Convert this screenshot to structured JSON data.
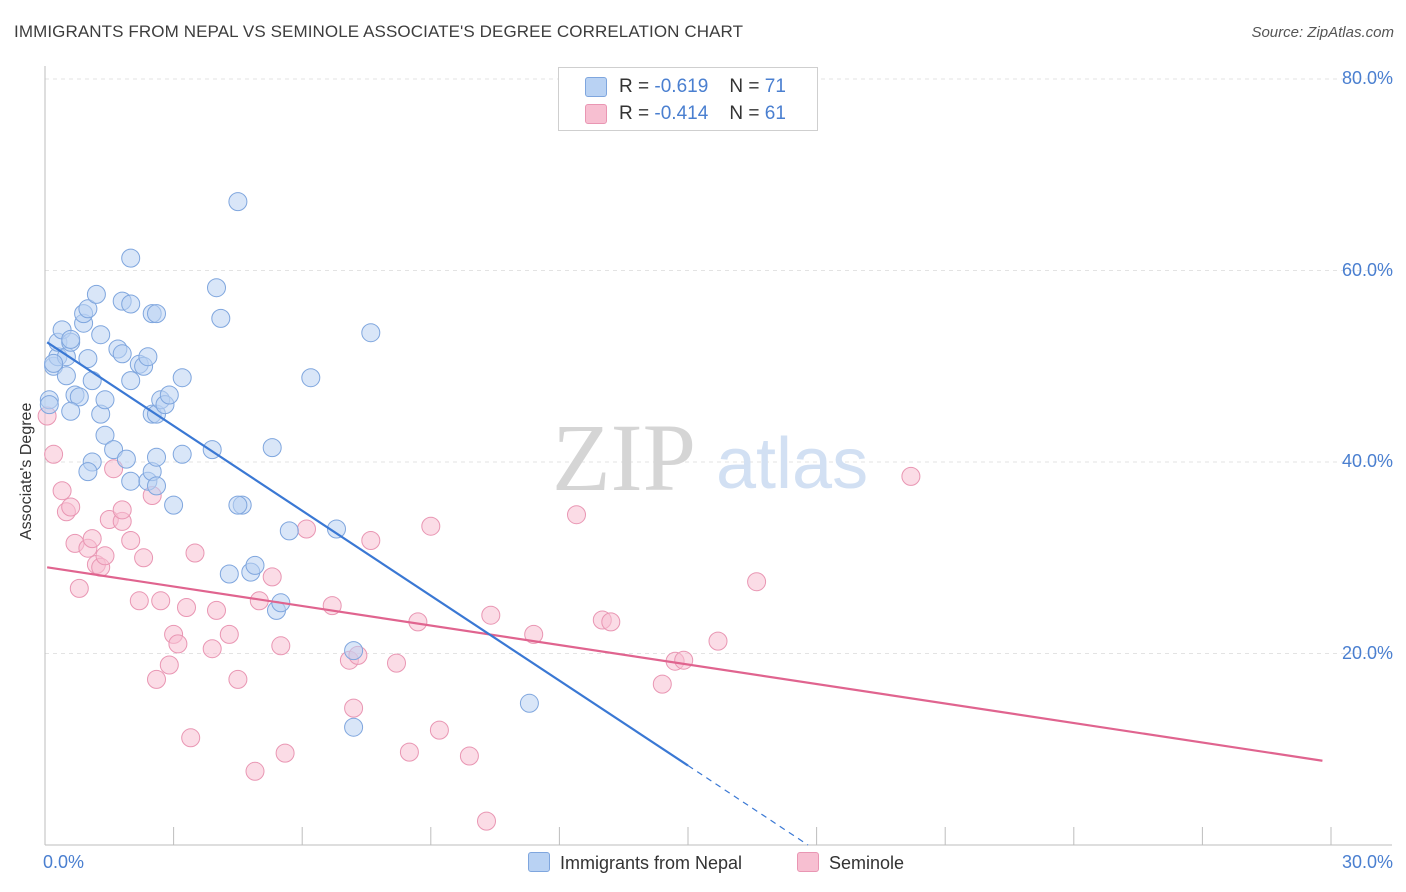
{
  "header": {
    "title": "IMMIGRANTS FROM NEPAL VS SEMINOLE ASSOCIATE'S DEGREE CORRELATION CHART",
    "source": "Source: ZipAtlas.com"
  },
  "watermark": {
    "zip": "ZIP",
    "atlas": "atlas"
  },
  "legend": {
    "rows": [
      {
        "r_label": "R =",
        "r_value": "-0.619",
        "n_label": "N =",
        "n_value": "71"
      },
      {
        "r_label": "R =",
        "r_value": "-0.414",
        "n_label": "N =",
        "n_value": "61"
      }
    ]
  },
  "colors": {
    "nepal": "#4a7fd0",
    "nepal_fill": "#b9d2f3",
    "seminole": "#e0648f",
    "seminole_fill": "#f7bfd1",
    "axis_text": "#4a7fd0"
  },
  "chart_data": {
    "type": "scatter",
    "title": "IMMIGRANTS FROM NEPAL VS SEMINOLE ASSOCIATE'S DEGREE CORRELATION CHART",
    "xlabel": "",
    "ylabel": "Associate's Degree",
    "xlim": [
      0,
      30
    ],
    "ylim": [
      0,
      80
    ],
    "x_ticks": [
      "0.0%",
      "30.0%"
    ],
    "y_ticks": [
      "20.0%",
      "40.0%",
      "60.0%",
      "80.0%"
    ],
    "grid": true,
    "legend_position": "top-center",
    "series": [
      {
        "name": "Immigrants from Nepal",
        "r": -0.619,
        "n": 71,
        "trend": {
          "x": [
            0.05,
            15.0
          ],
          "y": [
            52.5,
            8.3
          ],
          "dashed_to": [
            17.8,
            0.0
          ]
        },
        "points": [
          [
            0.1,
            46.5
          ],
          [
            0.2,
            50.0
          ],
          [
            0.3,
            51.0
          ],
          [
            0.3,
            52.5
          ],
          [
            0.4,
            53.8
          ],
          [
            0.5,
            51.0
          ],
          [
            0.5,
            49.0
          ],
          [
            0.6,
            52.5
          ],
          [
            0.6,
            52.8
          ],
          [
            0.7,
            47.0
          ],
          [
            0.8,
            46.8
          ],
          [
            0.9,
            54.5
          ],
          [
            0.9,
            55.5
          ],
          [
            1.0,
            56.0
          ],
          [
            1.0,
            50.8
          ],
          [
            1.1,
            48.5
          ],
          [
            1.1,
            40.0
          ],
          [
            1.0,
            39.0
          ],
          [
            1.2,
            57.5
          ],
          [
            1.3,
            53.3
          ],
          [
            1.3,
            45.0
          ],
          [
            1.4,
            46.5
          ],
          [
            1.4,
            42.8
          ],
          [
            1.6,
            41.3
          ],
          [
            1.7,
            51.8
          ],
          [
            1.8,
            51.3
          ],
          [
            1.8,
            56.8
          ],
          [
            1.9,
            40.3
          ],
          [
            2.0,
            38.0
          ],
          [
            2.0,
            56.5
          ],
          [
            2.0,
            48.5
          ],
          [
            2.2,
            50.2
          ],
          [
            2.3,
            50.0
          ],
          [
            2.4,
            51.0
          ],
          [
            2.0,
            61.3
          ],
          [
            2.4,
            38.0
          ],
          [
            2.5,
            45.0
          ],
          [
            2.5,
            39.0
          ],
          [
            2.5,
            55.5
          ],
          [
            2.6,
            45.0
          ],
          [
            2.6,
            55.5
          ],
          [
            2.6,
            40.5
          ],
          [
            2.6,
            37.5
          ],
          [
            2.7,
            46.5
          ],
          [
            2.8,
            46.0
          ],
          [
            2.9,
            47.0
          ],
          [
            3.0,
            35.5
          ],
          [
            3.2,
            48.8
          ],
          [
            3.2,
            40.8
          ],
          [
            3.9,
            41.3
          ],
          [
            4.0,
            58.2
          ],
          [
            4.1,
            55.0
          ],
          [
            4.3,
            28.3
          ],
          [
            4.5,
            67.2
          ],
          [
            4.6,
            35.5
          ],
          [
            4.5,
            35.5
          ],
          [
            4.8,
            28.5
          ],
          [
            4.9,
            29.2
          ],
          [
            5.3,
            41.5
          ],
          [
            5.4,
            24.5
          ],
          [
            5.5,
            25.3
          ],
          [
            5.7,
            32.8
          ],
          [
            6.2,
            48.8
          ],
          [
            6.8,
            33.0
          ],
          [
            7.2,
            20.3
          ],
          [
            7.2,
            12.3
          ],
          [
            7.6,
            53.5
          ],
          [
            11.3,
            14.8
          ],
          [
            0.1,
            46.0
          ],
          [
            0.2,
            50.3
          ],
          [
            0.6,
            45.3
          ]
        ]
      },
      {
        "name": "Seminole",
        "r": -0.414,
        "n": 61,
        "trend": {
          "x": [
            0.05,
            29.8
          ],
          "y": [
            29.0,
            8.8
          ]
        },
        "points": [
          [
            0.05,
            44.8
          ],
          [
            0.2,
            40.8
          ],
          [
            0.4,
            37.0
          ],
          [
            0.5,
            34.8
          ],
          [
            0.6,
            35.3
          ],
          [
            0.7,
            31.5
          ],
          [
            0.8,
            26.8
          ],
          [
            1.0,
            31.0
          ],
          [
            1.1,
            32.0
          ],
          [
            1.2,
            29.3
          ],
          [
            1.3,
            29.0
          ],
          [
            1.4,
            30.2
          ],
          [
            1.5,
            34.0
          ],
          [
            1.6,
            39.3
          ],
          [
            1.8,
            33.8
          ],
          [
            1.8,
            35.0
          ],
          [
            2.0,
            31.8
          ],
          [
            2.2,
            25.5
          ],
          [
            2.3,
            30.0
          ],
          [
            2.5,
            36.5
          ],
          [
            2.6,
            17.3
          ],
          [
            2.7,
            25.5
          ],
          [
            2.9,
            18.8
          ],
          [
            3.0,
            22.0
          ],
          [
            3.1,
            21.0
          ],
          [
            3.3,
            24.8
          ],
          [
            3.4,
            11.2
          ],
          [
            3.5,
            30.5
          ],
          [
            3.9,
            20.5
          ],
          [
            4.0,
            24.5
          ],
          [
            4.3,
            22.0
          ],
          [
            4.5,
            17.3
          ],
          [
            4.9,
            7.7
          ],
          [
            5.0,
            25.5
          ],
          [
            5.3,
            28.0
          ],
          [
            5.5,
            20.8
          ],
          [
            5.6,
            9.6
          ],
          [
            6.1,
            33.0
          ],
          [
            6.7,
            25.0
          ],
          [
            7.1,
            19.3
          ],
          [
            7.2,
            14.3
          ],
          [
            7.3,
            19.8
          ],
          [
            7.6,
            31.8
          ],
          [
            8.2,
            19.0
          ],
          [
            8.5,
            9.7
          ],
          [
            8.7,
            23.3
          ],
          [
            9.0,
            33.3
          ],
          [
            9.2,
            12.0
          ],
          [
            9.9,
            9.3
          ],
          [
            10.3,
            2.5
          ],
          [
            10.4,
            24.0
          ],
          [
            11.4,
            22.0
          ],
          [
            12.4,
            34.5
          ],
          [
            13.0,
            23.5
          ],
          [
            13.2,
            23.3
          ],
          [
            14.4,
            16.8
          ],
          [
            14.7,
            19.2
          ],
          [
            14.9,
            19.3
          ],
          [
            15.7,
            21.3
          ],
          [
            16.6,
            27.5
          ],
          [
            20.2,
            38.5
          ]
        ]
      }
    ]
  }
}
